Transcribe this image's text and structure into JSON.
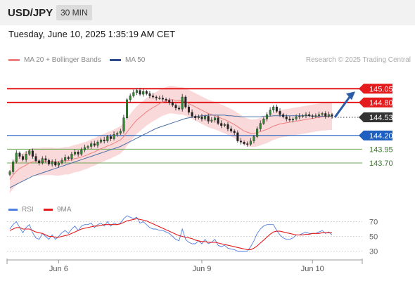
{
  "header": {
    "pair": "USD/JPY",
    "timeframe": "30 MIN"
  },
  "datetime": "Tuesday, June 10, 2025 1:35:19 AM CET",
  "legend": {
    "ma_bb": "MA 20 + Bollinger Bands",
    "ma50": "MA 50",
    "credit": "Research © 2025 Trading Central"
  },
  "rsi_legend": {
    "rsi": "RSI",
    "ma9": "9MA"
  },
  "colors": {
    "resistance": "#e41a1c",
    "pivot": "#1f5fbf",
    "support": "#6aa84f",
    "current": "#333333",
    "arrow": "#2d5da8",
    "bb": "#f4b3b3",
    "ma20": "#f08080",
    "ma50": "#4a6fa5",
    "rsi": "#4f7fe0",
    "rsi_ma": "#e41a1c"
  },
  "chart_data": {
    "type": "candlestick",
    "title": "USD/JPY 30 MIN",
    "x_tick_labels": [
      "Jun 6",
      "Jun 9",
      "Jun 10"
    ],
    "ylim": [
      143.15,
      145.45
    ],
    "current_price": 144.53,
    "levels": [
      {
        "value": 145.05,
        "label": "145.05",
        "kind": "resistance"
      },
      {
        "value": 144.8,
        "label": "144.80",
        "kind": "resistance"
      },
      {
        "value": 144.2,
        "label": "144.20",
        "kind": "pivot"
      },
      {
        "value": 143.95,
        "label": "143.95",
        "kind": "support"
      },
      {
        "value": 143.7,
        "label": "143.70",
        "kind": "support"
      }
    ],
    "forecast_target": 145.05,
    "closes": [
      143.54,
      143.72,
      143.88,
      143.82,
      143.76,
      143.86,
      143.92,
      143.82,
      143.74,
      143.7,
      143.78,
      143.75,
      143.68,
      143.72,
      143.66,
      143.7,
      143.75,
      143.8,
      143.78,
      143.86,
      143.9,
      143.86,
      143.94,
      143.98,
      144.0,
      144.05,
      144.02,
      144.08,
      144.12,
      144.1,
      144.18,
      144.14,
      144.22,
      144.24,
      144.28,
      144.52,
      144.85,
      144.92,
      144.98,
      145.02,
      144.95,
      145.0,
      144.96,
      144.92,
      144.9,
      144.88,
      144.88,
      144.86,
      144.84,
      144.8,
      144.75,
      144.7,
      144.68,
      144.9,
      144.72,
      144.62,
      144.55,
      144.52,
      144.54,
      144.5,
      144.55,
      144.46,
      144.48,
      144.52,
      144.42,
      144.38,
      144.4,
      144.32,
      144.28,
      144.25,
      144.1,
      144.08,
      144.05,
      144.04,
      144.1,
      144.18,
      144.32,
      144.42,
      144.5,
      144.58,
      144.66,
      144.72,
      144.64,
      144.58,
      144.54,
      144.5,
      144.48,
      144.5,
      144.54,
      144.55,
      144.56,
      144.58,
      144.56,
      144.55,
      144.56,
      144.58,
      144.6,
      144.55,
      144.58,
      144.55
    ],
    "ma20": [
      143.4,
      143.48,
      143.55,
      143.6,
      143.63,
      143.66,
      143.7,
      143.72,
      143.72,
      143.72,
      143.73,
      143.73,
      143.73,
      143.73,
      143.72,
      143.72,
      143.73,
      143.74,
      143.74,
      143.76,
      143.78,
      143.79,
      143.81,
      143.83,
      143.85,
      143.88,
      143.9,
      143.93,
      143.96,
      143.98,
      144.01,
      144.03,
      144.06,
      144.09,
      144.12,
      144.18,
      144.26,
      144.34,
      144.41,
      144.48,
      144.53,
      144.58,
      144.63,
      144.67,
      144.71,
      144.74,
      144.78,
      144.81,
      144.83,
      144.85,
      144.85,
      144.84,
      144.83,
      144.83,
      144.81,
      144.78,
      144.75,
      144.72,
      144.69,
      144.66,
      144.63,
      144.6,
      144.58,
      144.56,
      144.54,
      144.51,
      144.49,
      144.46,
      144.43,
      144.4,
      144.36,
      144.32,
      144.28,
      144.26,
      144.24,
      144.24,
      144.25,
      144.27,
      144.29,
      144.31,
      144.34,
      144.37,
      144.39,
      144.41,
      144.42,
      144.43,
      144.44,
      144.45,
      144.46,
      144.47,
      144.48,
      144.49,
      144.5,
      144.51,
      144.52,
      144.53,
      144.54,
      144.54,
      144.55,
      144.55
    ],
    "ma50": [
      143.25,
      143.28,
      143.31,
      143.34,
      143.37,
      143.4,
      143.43,
      143.46,
      143.48,
      143.5,
      143.52,
      143.54,
      143.56,
      143.58,
      143.6,
      143.62,
      143.64,
      143.66,
      143.68,
      143.7,
      143.72,
      143.74,
      143.76,
      143.78,
      143.8,
      143.82,
      143.84,
      143.86,
      143.88,
      143.9,
      143.92,
      143.94,
      143.96,
      143.98,
      144.0,
      144.03,
      144.06,
      144.09,
      144.12,
      144.15,
      144.18,
      144.21,
      144.24,
      144.27,
      144.3,
      144.33,
      144.35,
      144.37,
      144.39,
      144.41,
      144.43,
      144.45,
      144.47,
      144.49,
      144.51,
      144.52,
      144.53,
      144.54,
      144.55,
      144.56,
      144.56,
      144.57,
      144.57,
      144.57,
      144.57,
      144.57,
      144.57,
      144.56,
      144.56,
      144.55,
      144.55,
      144.54,
      144.54,
      144.54,
      144.54,
      144.54,
      144.54,
      144.54,
      144.55,
      144.55,
      144.55,
      144.56,
      144.56,
      144.56,
      144.56,
      144.56,
      144.56,
      144.56,
      144.56,
      144.56,
      144.56,
      144.56,
      144.56,
      144.55,
      144.55,
      144.55,
      144.55,
      144.55,
      144.55,
      144.55
    ],
    "bb_width": 0.25,
    "rsi": {
      "ticks": [
        70,
        50,
        30
      ],
      "ylim": [
        20,
        80
      ],
      "values": [
        60,
        66,
        70,
        62,
        55,
        62,
        66,
        55,
        48,
        46,
        54,
        50,
        46,
        52,
        46,
        50,
        55,
        58,
        54,
        60,
        64,
        58,
        64,
        66,
        66,
        68,
        62,
        66,
        68,
        64,
        70,
        64,
        68,
        66,
        68,
        74,
        78,
        76,
        74,
        76,
        68,
        70,
        66,
        62,
        60,
        60,
        58,
        58,
        56,
        54,
        50,
        46,
        44,
        60,
        46,
        42,
        40,
        40,
        44,
        40,
        46,
        40,
        42,
        46,
        38,
        36,
        38,
        34,
        33,
        32,
        30,
        30,
        30,
        30,
        36,
        44,
        54,
        60,
        64,
        66,
        66,
        66,
        58,
        52,
        48,
        46,
        46,
        48,
        52,
        52,
        54,
        56,
        54,
        54,
        54,
        56,
        58,
        54,
        56,
        52
      ],
      "ma9": [
        58,
        60,
        62,
        62,
        60,
        60,
        60,
        58,
        56,
        55,
        54,
        52,
        50,
        50,
        49,
        49,
        50,
        51,
        52,
        54,
        56,
        58,
        60,
        61,
        62,
        63,
        64,
        64,
        65,
        66,
        66,
        66,
        66,
        66,
        67,
        69,
        71,
        72,
        73,
        74,
        73,
        72,
        71,
        69,
        67,
        65,
        63,
        61,
        59,
        57,
        55,
        53,
        51,
        50,
        49,
        48,
        47,
        45,
        44,
        43,
        43,
        42,
        42,
        42,
        41,
        40,
        39,
        38,
        37,
        36,
        35,
        34,
        33,
        32,
        32,
        34,
        37,
        41,
        45,
        49,
        53,
        56,
        57,
        57,
        56,
        55,
        54,
        53,
        52,
        52,
        52,
        53,
        53,
        54,
        54,
        54,
        55,
        55,
        55,
        55
      ]
    }
  }
}
